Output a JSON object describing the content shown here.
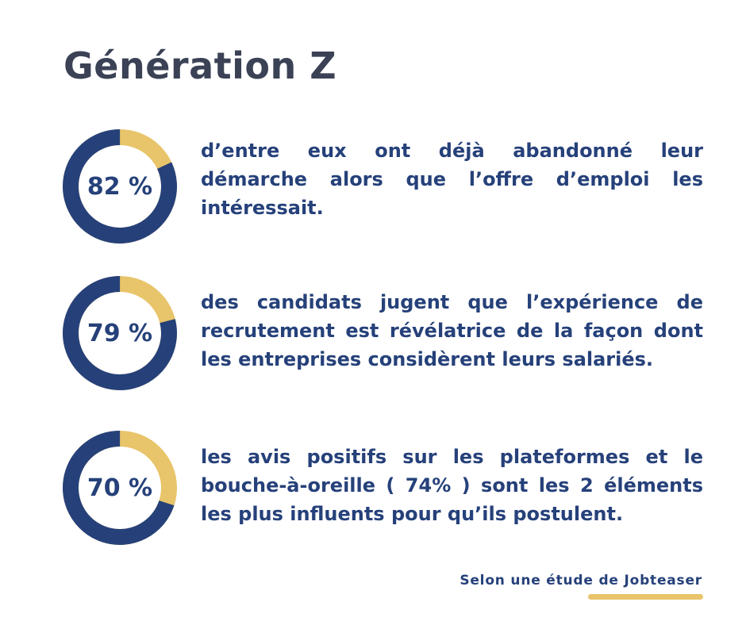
{
  "title": "Génération Z",
  "colors": {
    "primary": "#26417a",
    "accent": "#e8c46a",
    "title": "#3b4256"
  },
  "chart_data": [
    {
      "type": "pie",
      "value": 82,
      "label": "82 %",
      "description": "d’entre eux ont déjà abandonné leur démarche alors que l’offre d’emploi les intéressait."
    },
    {
      "type": "pie",
      "value": 79,
      "label": "79 %",
      "description": "des candidats jugent que l’expérience de recrutement est révélatrice de la façon dont les entreprises considèrent leurs salariés."
    },
    {
      "type": "pie",
      "value": 70,
      "label": "70 %",
      "description": "les avis positifs sur les plateformes et le bouche-à-oreille ( 74% ) sont les 2 éléments les plus influents pour qu’ils postulent."
    }
  ],
  "source": "Selon une étude de Jobteaser"
}
